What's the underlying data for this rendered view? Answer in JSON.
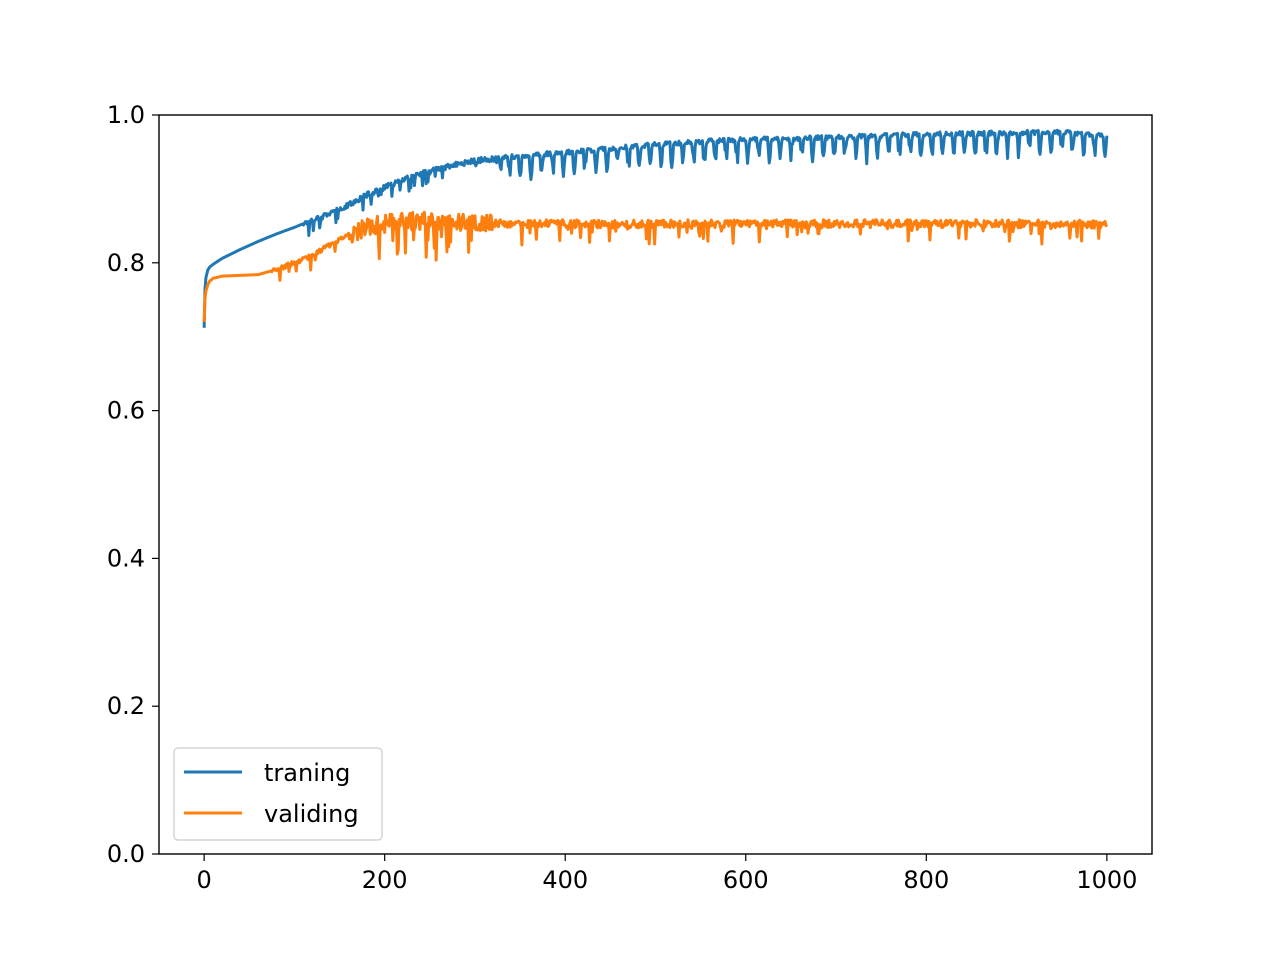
{
  "chart_data": {
    "type": "line",
    "title": "",
    "xlabel": "",
    "ylabel": "",
    "xlim": [
      -50,
      1050
    ],
    "ylim": [
      0.0,
      1.0
    ],
    "x_ticks": [
      0,
      200,
      400,
      600,
      800,
      1000
    ],
    "x_tick_labels": [
      "0",
      "200",
      "400",
      "600",
      "800",
      "1000"
    ],
    "y_ticks": [
      0.0,
      0.2,
      0.4,
      0.6,
      0.8,
      1.0
    ],
    "y_tick_labels": [
      "0.0",
      "0.2",
      "0.4",
      "0.6",
      "0.8",
      "1.0"
    ],
    "grid": false,
    "legend_position": "lower-left",
    "series": [
      {
        "name": "traning",
        "color": "#1f77b4",
        "x": [
          0,
          1,
          2,
          4,
          6,
          10,
          20,
          40,
          60,
          80,
          100,
          120,
          140,
          160,
          170,
          180,
          190,
          200,
          220,
          240,
          260,
          280,
          300,
          330,
          360,
          400,
          450,
          500,
          550,
          600,
          650,
          700,
          750,
          800,
          850,
          900,
          950,
          1000
        ],
        "y": [
          0.712,
          0.765,
          0.78,
          0.79,
          0.794,
          0.798,
          0.806,
          0.818,
          0.829,
          0.839,
          0.848,
          0.858,
          0.868,
          0.878,
          0.885,
          0.892,
          0.897,
          0.902,
          0.912,
          0.92,
          0.927,
          0.933,
          0.938,
          0.942,
          0.946,
          0.949,
          0.955,
          0.96,
          0.964,
          0.967,
          0.968,
          0.97,
          0.972,
          0.974,
          0.975,
          0.976,
          0.977,
          0.972
        ],
        "noise": [
          {
            "x0": 0,
            "x1": 110,
            "amp": 0.0,
            "period": 1
          },
          {
            "x0": 110,
            "x1": 330,
            "amp": 0.012,
            "period": 1
          },
          {
            "x0": 330,
            "x1": 1000,
            "amp": 0.024,
            "period": 12
          }
        ]
      },
      {
        "name": "validing",
        "color": "#ff7f0e",
        "x": [
          0,
          1,
          2,
          4,
          6,
          10,
          20,
          40,
          60,
          80,
          100,
          120,
          140,
          160,
          180,
          200,
          220,
          240,
          260,
          300,
          350,
          400,
          450,
          500,
          600,
          700,
          800,
          900,
          1000
        ],
        "y": [
          0.72,
          0.752,
          0.762,
          0.77,
          0.775,
          0.779,
          0.782,
          0.783,
          0.784,
          0.791,
          0.8,
          0.81,
          0.825,
          0.838,
          0.848,
          0.853,
          0.856,
          0.857,
          0.855,
          0.854,
          0.853,
          0.853,
          0.852,
          0.853,
          0.853,
          0.853,
          0.853,
          0.853,
          0.852
        ],
        "noise": [
          {
            "x0": 0,
            "x1": 75,
            "amp": 0.0,
            "period": 1
          },
          {
            "x0": 75,
            "x1": 165,
            "amp": 0.01,
            "period": 1
          },
          {
            "x0": 165,
            "x1": 320,
            "amp": 0.04,
            "period": 1
          },
          {
            "x0": 320,
            "x1": 1000,
            "amp": 0.018,
            "period": 1
          }
        ]
      }
    ]
  }
}
